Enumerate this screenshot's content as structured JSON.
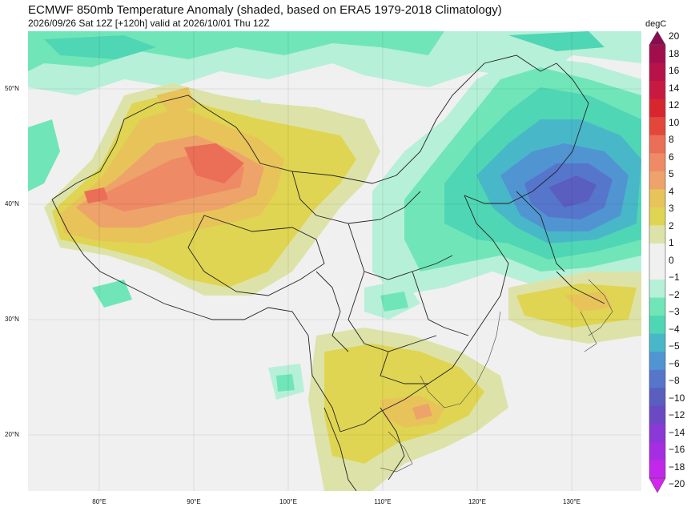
{
  "title": "ECMWF 850mb Temperature Anomaly (shaded, based on ERA5 1979-2018 Climatology)",
  "subtitle": "2026/09/26 Sat 12Z [+120h] valid at 2026/10/01 Thu 12Z",
  "map": {
    "lat_labels": [
      "50°N",
      "40°N",
      "30°N",
      "20°N"
    ],
    "lon_labels": [
      "80°E",
      "90°E",
      "100°E",
      "110°E",
      "120°E",
      "130°E"
    ]
  },
  "colorbar": {
    "unit": "degC",
    "ticks": [
      "20",
      "18",
      "16",
      "14",
      "12",
      "10",
      "8",
      "6",
      "5",
      "4",
      "3",
      "2",
      "1",
      "0",
      "−1",
      "−2",
      "−3",
      "−4",
      "−5",
      "−6",
      "−8",
      "−10",
      "−12",
      "−14",
      "−16",
      "−18",
      "−20"
    ],
    "colors": [
      "#8b0a50",
      "#a20d4e",
      "#b8124a",
      "#c81a40",
      "#d8262f",
      "#e2473a",
      "#eb6e57",
      "#ee8a65",
      "#eda36a",
      "#e8c35a",
      "#dfd552",
      "#dde3a8",
      "#f0f0f0",
      "#f0f0f0",
      "#b6f0d8",
      "#70e6b8",
      "#4fd6b4",
      "#48b8c8",
      "#5194d2",
      "#5676cc",
      "#5a5ebe",
      "#6b49c4",
      "#8a38d6",
      "#a62ee2",
      "#c128ec",
      "#d624f2"
    ]
  }
}
